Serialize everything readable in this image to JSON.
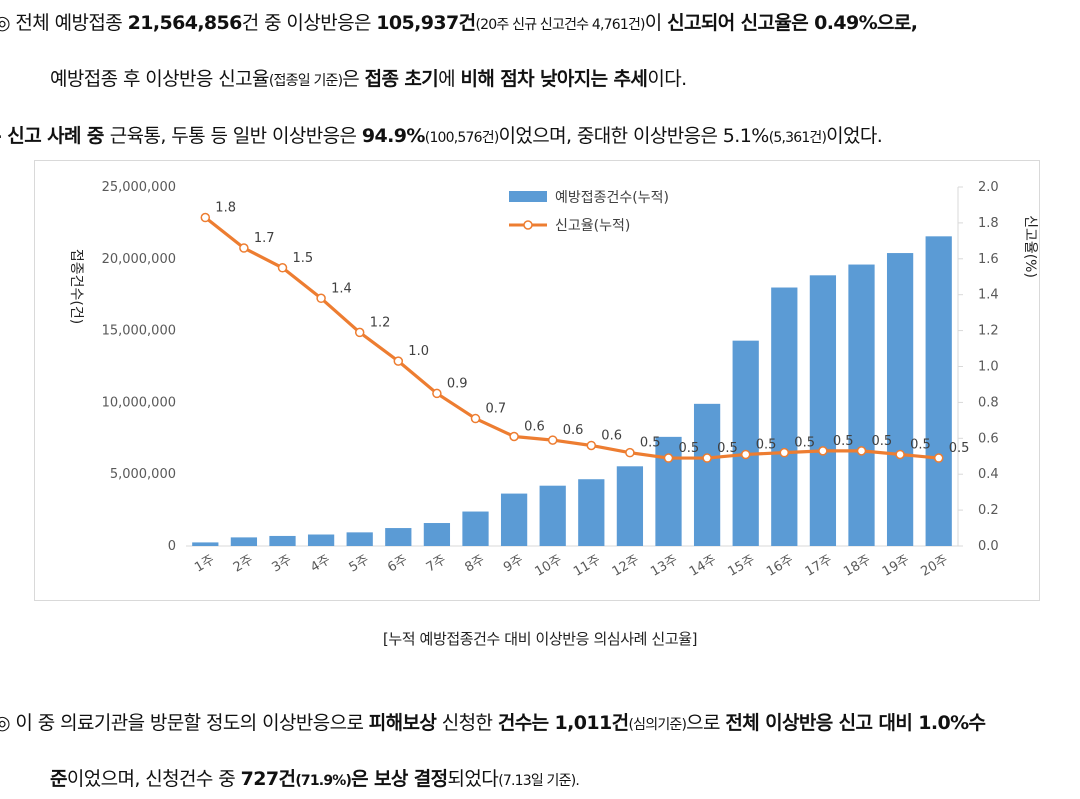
{
  "text": {
    "l1": {
      "bullet": "◎",
      "a": " 전체 예방접종 ",
      "b": "21,564,856",
      "c": "건 중 이상반응은 ",
      "d": "105,937건",
      "e": "(20주 신규 신고건수 4,761건)",
      "f": "이 ",
      "g": "신고되어 신고율은 0.49%으로,"
    },
    "l2": {
      "a": "예방접종 후 이상반응 신고율",
      "b": "(접종일 기준)",
      "c": "은 ",
      "d": "접종 초기",
      "e": "에 ",
      "f": "비해 점차 낮아지는 추세",
      "g": "이다."
    },
    "l3": {
      "bullet": "-",
      "a": " 신고 사례 중 ",
      "b": "근육통, 두통 등 일반 이상반응은 ",
      "c": "94.9%",
      "d": "(100,576건)",
      "e": "이었으며, 중대한 이상반응은 5.1%",
      "f": "(5,361건)",
      "g": "이었다."
    },
    "caption": "[누적 예방접종건수 대비 이상반응 의심사례 신고율]",
    "l4": {
      "bullet": "◎",
      "a": " 이 중 의료기관을 방문할 정도의 이상반응으로 ",
      "b": "피해보상",
      "c": " 신청한 ",
      "d": "건수는 1,011건",
      "e": "(심의기준)",
      "f": "으로 ",
      "g": "전체 이상반응 신고 대비 1.0%수"
    },
    "l5": {
      "a": "준",
      "b": "이었으며, 신청건수 중 ",
      "c": "727건",
      "d": "(71.9%)",
      "e": "은 보상 결정",
      "f": "되었다",
      "g": "(7.13일 기준)."
    }
  },
  "chart_data": {
    "type": "bar+line",
    "categories": [
      "1주",
      "2주",
      "3주",
      "4주",
      "5주",
      "6주",
      "7주",
      "8주",
      "9주",
      "10주",
      "11주",
      "12주",
      "13주",
      "14주",
      "15주",
      "16주",
      "17주",
      "18주",
      "19주",
      "20주"
    ],
    "series": [
      {
        "name": "예방접종건수(누적)",
        "type": "bar",
        "axis": "left",
        "color": "#5b9bd5",
        "values": [
          250000,
          600000,
          700000,
          800000,
          950000,
          1250000,
          1600000,
          2400000,
          3650000,
          4200000,
          4650000,
          5550000,
          7600000,
          9900000,
          14300000,
          18000000,
          18850000,
          19600000,
          20400000,
          21564856
        ]
      },
      {
        "name": "신고율(누적)",
        "type": "line",
        "axis": "right",
        "color": "#ed7d31",
        "values": [
          1.83,
          1.66,
          1.55,
          1.38,
          1.19,
          1.03,
          0.85,
          0.71,
          0.61,
          0.59,
          0.56,
          0.52,
          0.49,
          0.49,
          0.51,
          0.52,
          0.53,
          0.53,
          0.51,
          0.49
        ],
        "labels": [
          "1.8",
          "1.7",
          "1.5",
          "1.4",
          "1.2",
          "1.0",
          "0.9",
          "0.7",
          "0.6",
          "0.6",
          "0.6",
          "0.5",
          "0.5",
          "0.5",
          "0.5",
          "0.5",
          "0.5",
          "0.5",
          "0.5",
          "0.5"
        ]
      }
    ],
    "y_left": {
      "label": "접종건수(건)",
      "min": 0,
      "max": 25000000,
      "ticks": [
        "0",
        "5,000,000",
        "10,000,000",
        "15,000,000",
        "20,000,000",
        "25,000,000"
      ]
    },
    "y_right": {
      "label": "신고율(%)",
      "min": 0,
      "max": 2.0,
      "ticks": [
        "0.0",
        "0.2",
        "0.4",
        "0.6",
        "0.8",
        "1.0",
        "1.2",
        "1.4",
        "1.6",
        "1.8",
        "2.0"
      ]
    },
    "legend": "top-right"
  }
}
